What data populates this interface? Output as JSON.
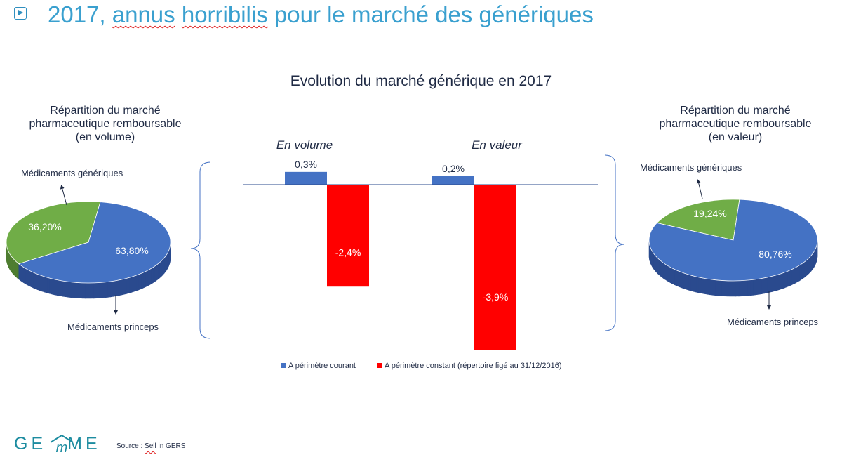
{
  "slide": {
    "title_prefix": "2017, ",
    "title_w1": "annus",
    "title_w2": "horribilis",
    "title_suffix": " pour le marché des génériques"
  },
  "chart_title": "Evolution du marché générique en 2017",
  "pie_left": {
    "title_lines": [
      "Répartition du marché",
      "pharmaceutique remboursable",
      "(en volume)"
    ],
    "label_generic": "Médicaments génériques",
    "label_princeps": "Médicaments princeps"
  },
  "pie_right": {
    "title_lines": [
      "Répartition du marché",
      "pharmaceutique remboursable",
      "(en valeur)"
    ],
    "label_generic": "Médicaments génériques",
    "label_princeps": "Médicaments princeps"
  },
  "colors": {
    "blue": "#4472c4",
    "blue_dark": "#2a4a8e",
    "green": "#70ad47",
    "green_dark": "#4e7d30",
    "red": "#ff0000",
    "title_blue": "#3aa0cf"
  },
  "chart_data": [
    {
      "type": "pie",
      "slices": [
        {
          "label": "Médicaments génériques",
          "value": 36.2,
          "display": "36,20%"
        },
        {
          "label": "Médicaments princeps",
          "value": 63.8,
          "display": "63,80%"
        }
      ]
    },
    {
      "type": "bar",
      "categories": [
        "En volume",
        "En valeur"
      ],
      "series": [
        {
          "name": "A périmètre courant",
          "values": [
            0.3,
            0.2
          ],
          "labels": [
            "0,3%",
            "0,2%"
          ]
        },
        {
          "name": "A périmètre constant (répertoire figé au 31/12/2016)",
          "values": [
            -2.4,
            -3.9
          ],
          "labels": [
            "-2,4%",
            "-3,9%"
          ]
        }
      ]
    },
    {
      "type": "pie",
      "slices": [
        {
          "label": "Médicaments génériques",
          "value": 19.24,
          "display": "19,24%"
        },
        {
          "label": "Médicaments princeps",
          "value": 80.76,
          "display": "80,76%"
        }
      ]
    }
  ],
  "footer": {
    "logo_left": "GE",
    "logo_right": "ME",
    "source_prefix": "Source : ",
    "source_word": "Sell",
    "source_suffix": " in GERS"
  }
}
